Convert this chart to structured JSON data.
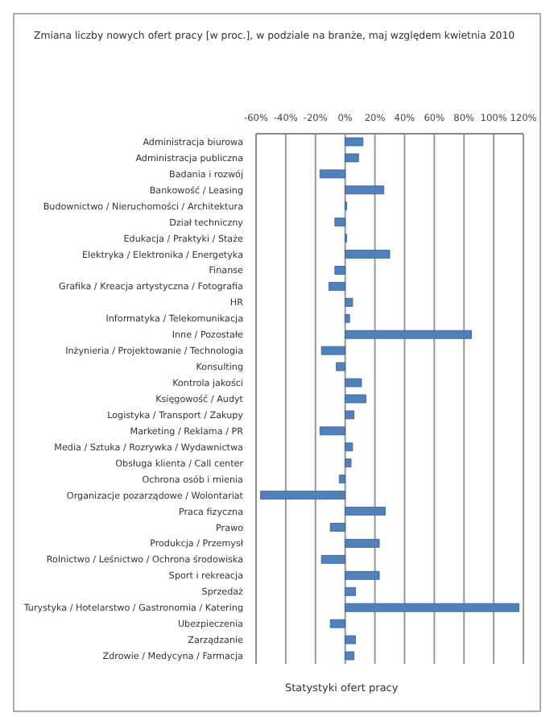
{
  "chart_data": {
    "type": "bar",
    "orientation": "horizontal",
    "title": "Zmiana liczby nowych ofert pracy [w proc.], w podziale na branże, maj względem kwietnia 2010",
    "categories": [
      "Administracja biurowa",
      "Administracja publiczna",
      "Badania i rozwój",
      "Bankowość / Leasing",
      "Budownictwo / Nieruchomości / Architektura",
      "Dział techniczny",
      "Edukacja / Praktyki / Staże",
      "Elektryka / Elektronika / Energetyka",
      "Finanse",
      "Grafika / Kreacja artystyczna / Fotografia",
      "HR",
      "Informatyka / Telekomunikacja",
      "Inne / Pozostałe",
      "Inżynieria / Projektowanie / Technologia",
      "Konsulting",
      "Kontrola jakości",
      "Księgowość / Audyt",
      "Logistyka / Transport / Zakupy",
      "Marketing / Reklama / PR",
      "Media / Sztuka / Rozrywka / Wydawnictwa",
      "Obsługa klienta / Call center",
      "Ochrona osób i mienia",
      "Organizacje pozarządowe / Wolontariat",
      "Praca fizyczna",
      "Prawo",
      "Produkcja / Przemysł",
      "Rolnictwo / Leśnictwo / Ochrona środowiska",
      "Sport i rekreacja",
      "Sprzedaż",
      "Turystyka / Hotelarstwo / Gastronomia / Katering",
      "Ubezpieczenia",
      "Zarządzanie",
      "Zdrowie / Medycyna / Farmacja"
    ],
    "values": [
      12,
      9,
      -17,
      26,
      1,
      -7,
      1,
      30,
      -7,
      -11,
      5,
      3,
      85,
      -16,
      -6,
      11,
      14,
      6,
      -17,
      5,
      4,
      -4,
      -57,
      27,
      -10,
      23,
      -16,
      23,
      7,
      117,
      -10,
      7,
      6
    ],
    "color": "#4f81bd",
    "xlim": [
      -60,
      120
    ],
    "xticks": [
      {
        "value": -60,
        "label": "-60%"
      },
      {
        "value": -40,
        "label": "-40%"
      },
      {
        "value": -20,
        "label": "-20%"
      },
      {
        "value": 0,
        "label": "0%"
      },
      {
        "value": 20,
        "label": "20%"
      },
      {
        "value": 40,
        "label": "40%"
      },
      {
        "value": 60,
        "label": "60%"
      },
      {
        "value": 80,
        "label": "80%"
      },
      {
        "value": 100,
        "label": "100%"
      },
      {
        "value": 120,
        "label": "120%"
      }
    ],
    "grid": "x",
    "annotations": [
      "Statystyki ofert pracy"
    ]
  }
}
